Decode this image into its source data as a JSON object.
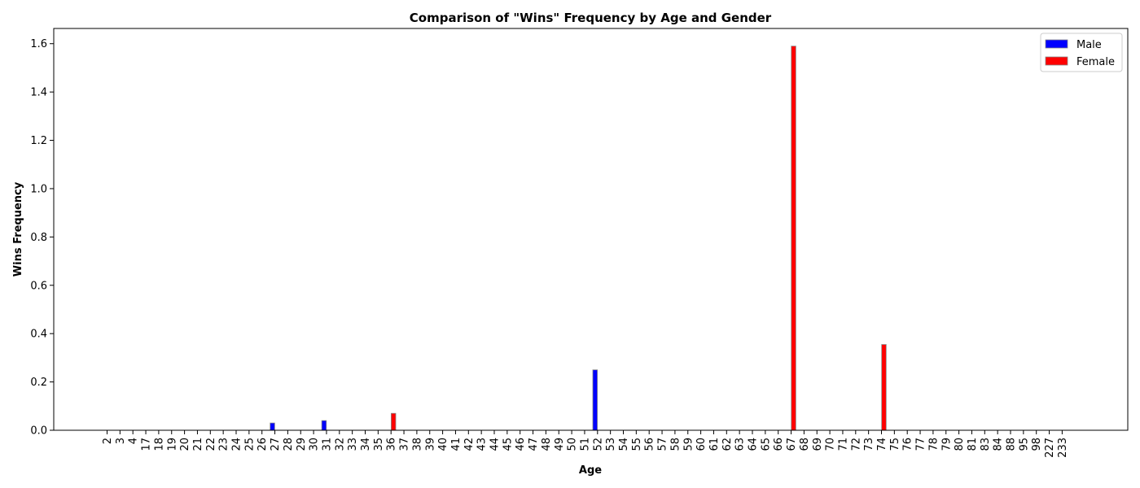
{
  "chart_data": {
    "type": "bar",
    "title": "Comparison of \"Wins\" Frequency by Age and Gender",
    "xlabel": "Age",
    "ylabel": "Wins Frequency",
    "ylim": [
      0,
      1.663
    ],
    "yticks": [
      0.0,
      0.2,
      0.4,
      0.6,
      0.8,
      1.0,
      1.2,
      1.4,
      1.6
    ],
    "legend_position": "top-right",
    "categories": [
      "2",
      "3",
      "4",
      "17",
      "18",
      "19",
      "20",
      "21",
      "22",
      "23",
      "24",
      "25",
      "26",
      "27",
      "28",
      "29",
      "30",
      "31",
      "32",
      "33",
      "34",
      "35",
      "36",
      "37",
      "38",
      "39",
      "40",
      "41",
      "42",
      "43",
      "44",
      "45",
      "46",
      "47",
      "48",
      "49",
      "50",
      "51",
      "52",
      "53",
      "54",
      "55",
      "56",
      "57",
      "58",
      "59",
      "60",
      "61",
      "62",
      "63",
      "64",
      "65",
      "66",
      "67",
      "68",
      "69",
      "70",
      "71",
      "72",
      "73",
      "74",
      "75",
      "76",
      "77",
      "78",
      "79",
      "80",
      "81",
      "83",
      "84",
      "88",
      "95",
      "98",
      "227",
      "233"
    ],
    "series": [
      {
        "name": "Male",
        "color": "#0000ff",
        "values": [
          0,
          0,
          0,
          0,
          0,
          0,
          0,
          0,
          0,
          0,
          0,
          0,
          0,
          0.03,
          0,
          0,
          0,
          0.04,
          0,
          0,
          0,
          0,
          0,
          0,
          0,
          0,
          0,
          0,
          0,
          0,
          0,
          0,
          0,
          0,
          0,
          0,
          0,
          0,
          0.25,
          0,
          0,
          0,
          0,
          0,
          0,
          0,
          0,
          0,
          0,
          0,
          0,
          0,
          0,
          0,
          0,
          0,
          0,
          0,
          0,
          0,
          0,
          0,
          0,
          0,
          0,
          0,
          0,
          0,
          0,
          0,
          0,
          0,
          0,
          0,
          0
        ]
      },
      {
        "name": "Female",
        "color": "#ff0000",
        "values": [
          0,
          0,
          0,
          0,
          0,
          0,
          0,
          0,
          0,
          0,
          0,
          0,
          0,
          0,
          0,
          0,
          0,
          0,
          0,
          0,
          0,
          0,
          0.07,
          0,
          0,
          0,
          0,
          0,
          0,
          0,
          0,
          0,
          0,
          0,
          0,
          0,
          0,
          0,
          0,
          0,
          0,
          0,
          0,
          0,
          0,
          0,
          0,
          0,
          0,
          0,
          0,
          0,
          0,
          1.59,
          0,
          0,
          0,
          0,
          0,
          0,
          0.355,
          0,
          0,
          0,
          0,
          0,
          0,
          0,
          0,
          0,
          0,
          0,
          0,
          0,
          0
        ]
      }
    ]
  }
}
